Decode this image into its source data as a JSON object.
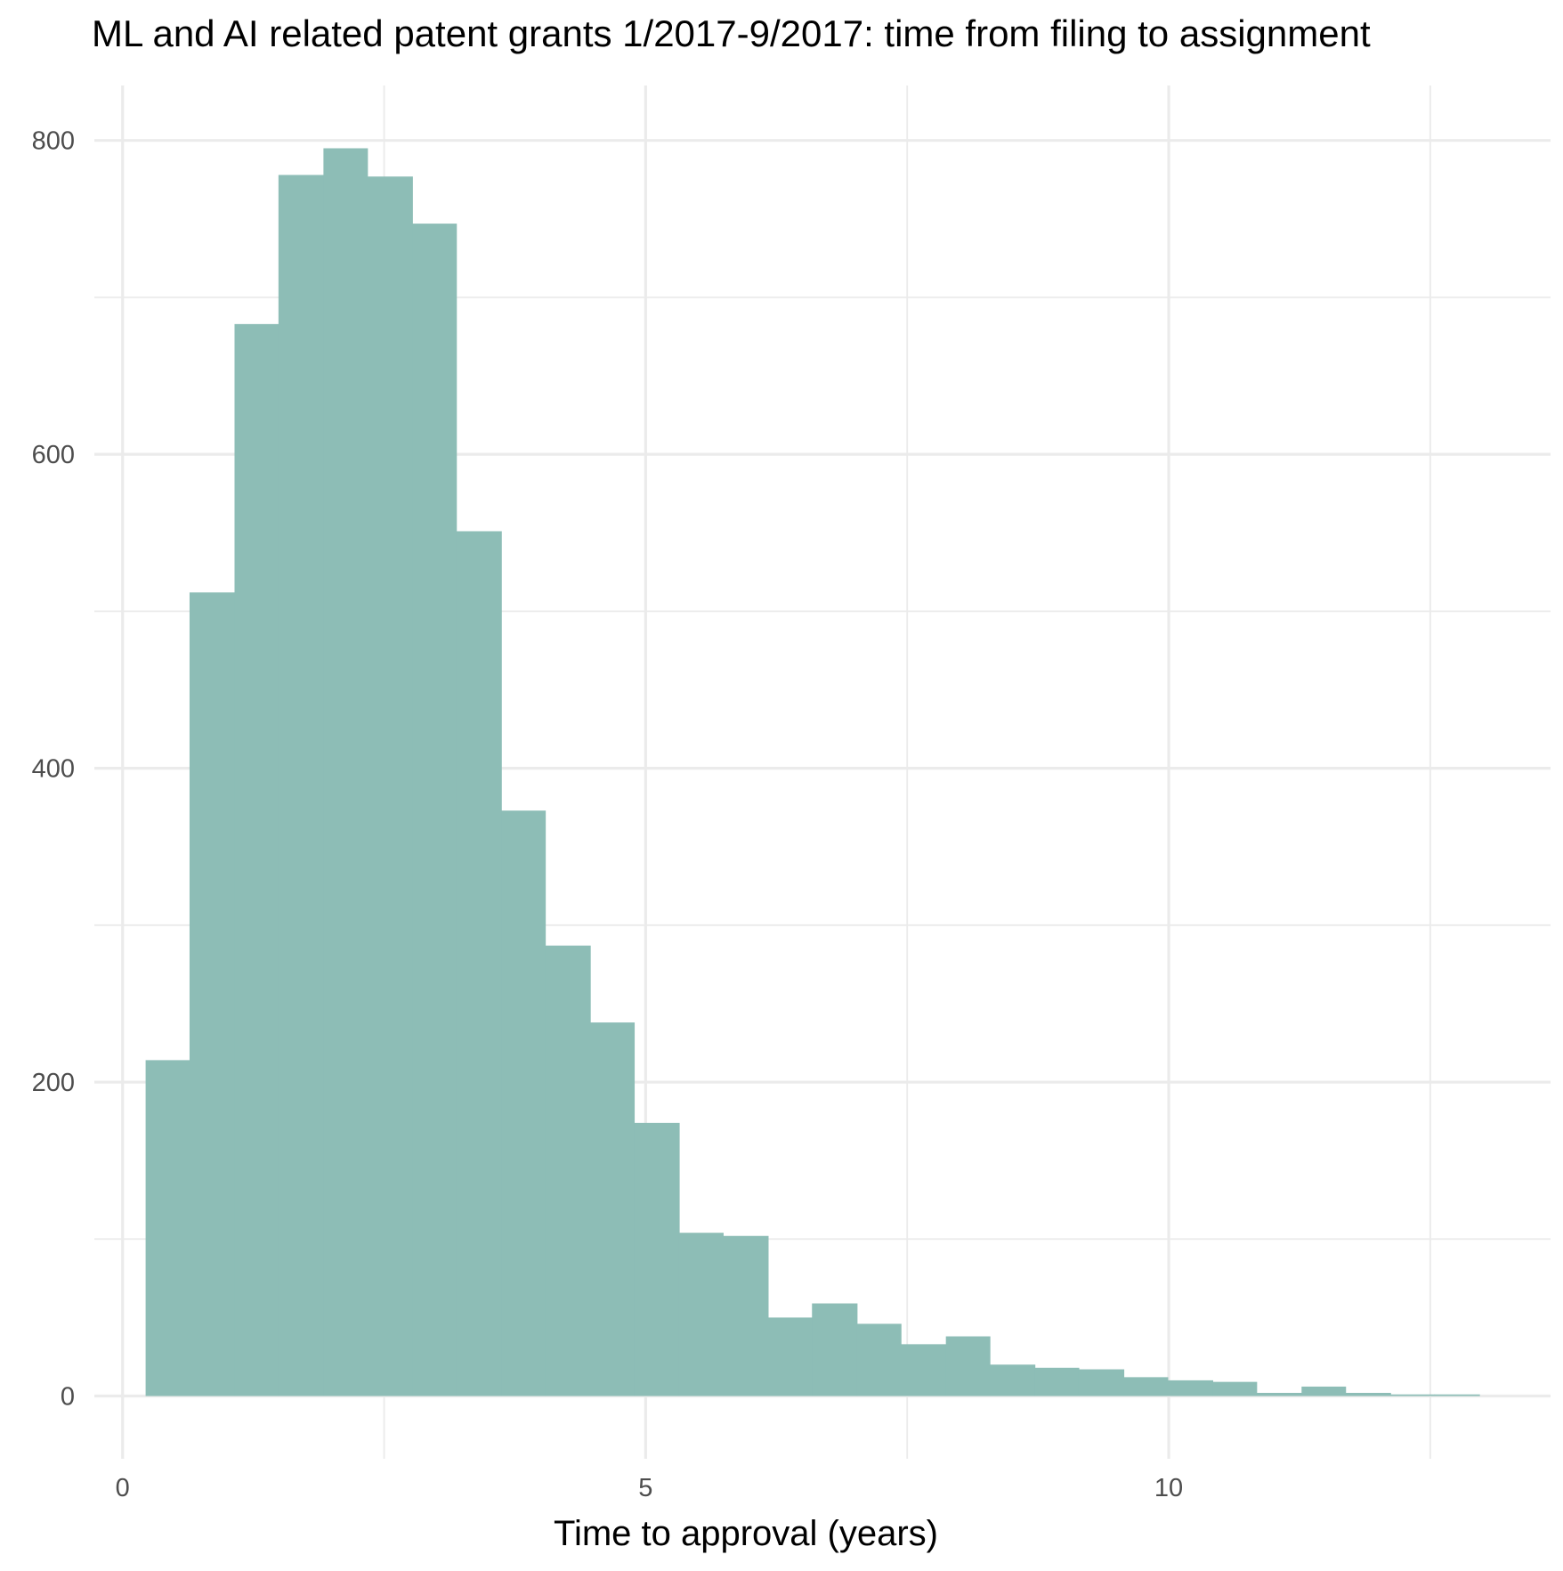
{
  "chart_data": {
    "type": "bar",
    "title": "ML and AI related patent grants 1/2017-9/2017: time from filing to assignment",
    "xlabel": "Time to approval (years)",
    "ylabel": "",
    "xlim": [
      -0.27,
      13.65
    ],
    "ylim": [
      -40,
      835
    ],
    "x_ticks": [
      0,
      5,
      10
    ],
    "y_ticks": [
      0,
      200,
      400,
      600,
      800
    ],
    "grid": true,
    "legend": "none",
    "bar_color": "#8dbdb6",
    "bins": [
      {
        "x0": 0.22,
        "x1": 0.64,
        "count": 214
      },
      {
        "x0": 0.64,
        "x1": 1.07,
        "count": 512
      },
      {
        "x0": 1.07,
        "x1": 1.49,
        "count": 683
      },
      {
        "x0": 1.49,
        "x1": 1.92,
        "count": 778
      },
      {
        "x0": 1.92,
        "x1": 2.34,
        "count": 795
      },
      {
        "x0": 2.34,
        "x1": 2.77,
        "count": 777
      },
      {
        "x0": 2.77,
        "x1": 3.19,
        "count": 747
      },
      {
        "x0": 3.19,
        "x1": 3.62,
        "count": 551
      },
      {
        "x0": 3.62,
        "x1": 4.04,
        "count": 373
      },
      {
        "x0": 4.04,
        "x1": 4.47,
        "count": 287
      },
      {
        "x0": 4.47,
        "x1": 4.89,
        "count": 238
      },
      {
        "x0": 4.89,
        "x1": 5.32,
        "count": 174
      },
      {
        "x0": 5.32,
        "x1": 5.74,
        "count": 104
      },
      {
        "x0": 5.74,
        "x1": 6.17,
        "count": 102
      },
      {
        "x0": 6.17,
        "x1": 6.59,
        "count": 50
      },
      {
        "x0": 6.59,
        "x1": 7.02,
        "count": 59
      },
      {
        "x0": 7.02,
        "x1": 7.44,
        "count": 46
      },
      {
        "x0": 7.44,
        "x1": 7.87,
        "count": 33
      },
      {
        "x0": 7.87,
        "x1": 8.29,
        "count": 38
      },
      {
        "x0": 8.29,
        "x1": 8.72,
        "count": 20
      },
      {
        "x0": 8.72,
        "x1": 9.14,
        "count": 18
      },
      {
        "x0": 9.14,
        "x1": 9.57,
        "count": 17
      },
      {
        "x0": 9.57,
        "x1": 9.99,
        "count": 12
      },
      {
        "x0": 9.99,
        "x1": 10.42,
        "count": 10
      },
      {
        "x0": 10.42,
        "x1": 10.84,
        "count": 9
      },
      {
        "x0": 10.84,
        "x1": 11.27,
        "count": 2
      },
      {
        "x0": 11.27,
        "x1": 11.69,
        "count": 6
      },
      {
        "x0": 11.69,
        "x1": 12.12,
        "count": 2
      },
      {
        "x0": 12.12,
        "x1": 12.54,
        "count": 1
      },
      {
        "x0": 12.54,
        "x1": 12.97,
        "count": 1
      }
    ]
  }
}
